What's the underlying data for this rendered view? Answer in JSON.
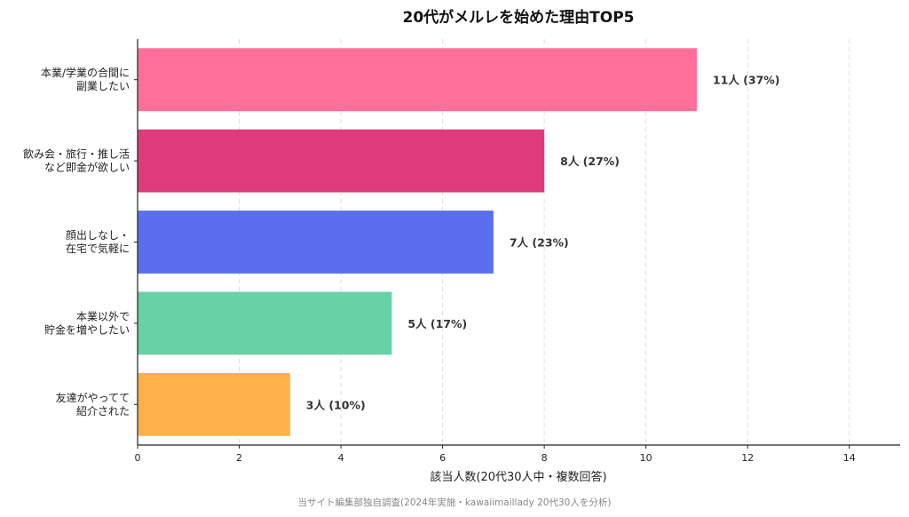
{
  "chart_data": {
    "type": "bar",
    "orientation": "horizontal",
    "title": "20代がメルレを始めた理由TOP5",
    "xlabel": "該当人数(20代30人中・複数回答)",
    "ylabel": "",
    "xlim": [
      0,
      15
    ],
    "xticks": [
      0,
      2,
      4,
      6,
      8,
      10,
      12,
      14
    ],
    "grid": "vertical-dashed",
    "categories": [
      [
        "本業/学業の合間に",
        "副業したい"
      ],
      [
        "飲み会・旅行・推し活",
        "など即金が欲しい"
      ],
      [
        "顔出しなし・",
        "在宅で気軽に"
      ],
      [
        "本業以外で",
        "貯金を増やしたい"
      ],
      [
        "友達がやってて",
        "紹介された"
      ]
    ],
    "values": [
      11,
      8,
      7,
      5,
      3
    ],
    "data_labels": [
      "11人 (37%)",
      "8人 (27%)",
      "7人 (23%)",
      "5人 (17%)",
      "3人 (10%)"
    ],
    "colors": [
      "#ff6f9a",
      "#df3b7c",
      "#5b6fee",
      "#69d1a6",
      "#ffb048"
    ],
    "source": "当サイト編集部独自調査(2024年実施・kawaiimaillady 20代30人を分析)"
  }
}
